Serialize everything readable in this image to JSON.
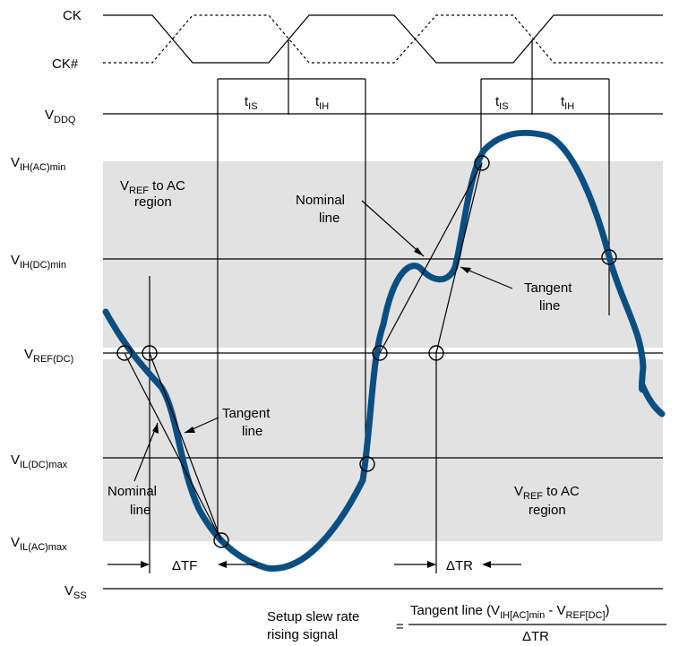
{
  "colors": {
    "signal": "#0b4f82",
    "region": "#e2e2e2",
    "ink": "#000000"
  },
  "clock": {
    "ck": "CK",
    "ck_bar": "CK#"
  },
  "timing": {
    "t": "t",
    "is": "IS",
    "ih": "IH"
  },
  "levels": {
    "v": "V",
    "vddq": "DDQ",
    "vih_ac": "IH(AC)min",
    "vih_dc": "IH(DC)min",
    "vref": "REF(DC)",
    "vil_dc": "IL(DC)max",
    "vil_ac": "IL(AC)max",
    "vss": "SS"
  },
  "regions": {
    "top_v": "V",
    "top_sub": "REF",
    "top_l1": " to AC",
    "top_l2": "region",
    "bot_v": "V",
    "bot_sub": "REF",
    "bot_l1": " to AC",
    "bot_l2": "region"
  },
  "annotations": {
    "nominal_upper_1": "Nominal",
    "nominal_upper_2": "line",
    "tangent_upper_1": "Tangent",
    "tangent_upper_2": "line",
    "tangent_lower_1": "Tangent",
    "tangent_lower_2": "line",
    "nominal_lower_1": "Nominal",
    "nominal_lower_2": "line",
    "dtf": "ΔTF",
    "dtr": "ΔTR"
  },
  "formula": {
    "lhs_1": "Setup slew rate",
    "lhs_2": "rising signal",
    "eq": "=",
    "num_a": "Tangent line (V",
    "num_sub1": "IH[AC]min",
    "num_mid": " - V",
    "num_sub2": "REF[DC]",
    "num_end": ")",
    "den": "ΔTR"
  }
}
